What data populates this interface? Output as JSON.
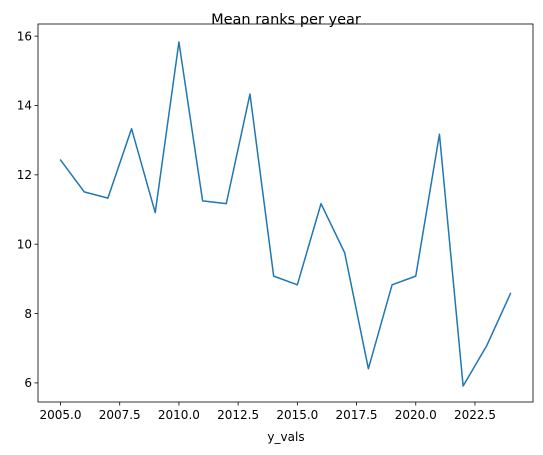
{
  "chart_data": {
    "type": "line",
    "title": "Mean ranks per year",
    "xlabel": "y_vals",
    "ylabel": "",
    "xlim": [
      2004.05,
      2024.95
    ],
    "ylim": [
      5.45,
      16.35
    ],
    "x_ticks": [
      2005.0,
      2007.5,
      2010.0,
      2012.5,
      2015.0,
      2017.5,
      2020.0,
      2022.5
    ],
    "x_tick_labels": [
      "2005.0",
      "2007.5",
      "2010.0",
      "2012.5",
      "2015.0",
      "2017.5",
      "2020.0",
      "2022.5"
    ],
    "y_ticks": [
      6,
      8,
      10,
      12,
      14,
      16
    ],
    "y_tick_labels": [
      "6",
      "8",
      "10",
      "12",
      "14",
      "16"
    ],
    "grid": false,
    "series": [
      {
        "color": "#1f77b4",
        "x": [
          2005,
          2006,
          2007,
          2008,
          2009,
          2010,
          2011,
          2012,
          2013,
          2014,
          2015,
          2016,
          2017,
          2018,
          2019,
          2020,
          2021,
          2022,
          2023,
          2024
        ],
        "y": [
          12.43,
          11.51,
          11.33,
          13.33,
          10.91,
          15.83,
          11.25,
          11.17,
          14.33,
          9.08,
          8.83,
          11.17,
          9.75,
          6.41,
          8.83,
          9.08,
          13.17,
          5.91,
          7.08,
          8.58
        ]
      }
    ]
  }
}
